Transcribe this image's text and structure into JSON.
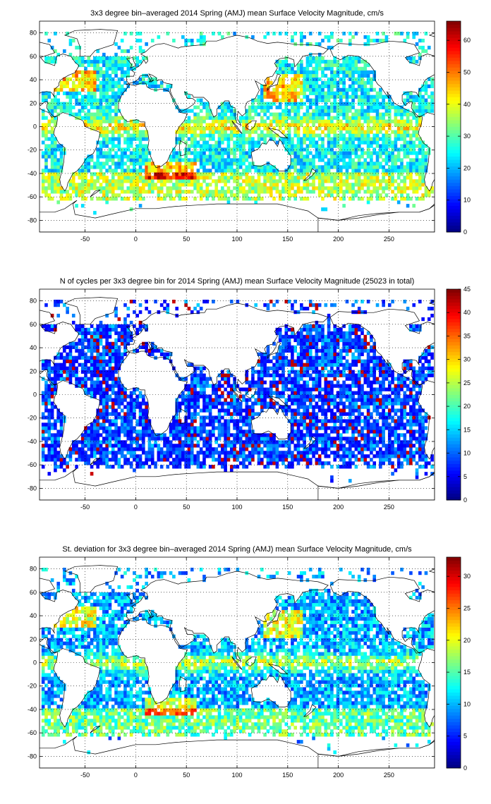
{
  "chart_data": [
    {
      "type": "heatmap",
      "title": "3x3 degree bin–averaged 2014 Spring (AMJ) mean Surface Velocity Magnitude, cm/s",
      "xlim": [
        -95,
        295
      ],
      "ylim": [
        -90,
        90
      ],
      "xticks": [
        -50,
        0,
        50,
        100,
        150,
        200,
        250
      ],
      "yticks": [
        80,
        60,
        40,
        20,
        0,
        -20,
        -40,
        -60,
        -80
      ],
      "grid": true,
      "bin_size_deg": 3,
      "colormap": "jet",
      "colorbar": {
        "min": 0,
        "max": 66,
        "ticks": [
          0,
          10,
          20,
          30,
          40,
          50,
          60
        ]
      },
      "map": "world coastlines"
    },
    {
      "type": "heatmap",
      "title": "N of cycles per 3x3 degree bin for 2014 Spring (AMJ) mean Surface Velocity Magnitude (25023 in total)",
      "total_cycles": 25023,
      "xlim": [
        -95,
        295
      ],
      "ylim": [
        -90,
        90
      ],
      "xticks": [
        -50,
        0,
        50,
        100,
        150,
        200,
        250
      ],
      "yticks": [
        80,
        60,
        40,
        20,
        0,
        -20,
        -40,
        -60,
        -80
      ],
      "grid": true,
      "bin_size_deg": 3,
      "colormap": "jet",
      "colorbar": {
        "min": 0,
        "max": 45,
        "ticks": [
          0,
          5,
          10,
          15,
          20,
          25,
          30,
          35,
          40,
          45
        ]
      },
      "map": "world coastlines"
    },
    {
      "type": "heatmap",
      "title": "St. deviation for 3x3 degree bin–averaged 2014 Spring (AMJ) mean Surface Velocity Magnitude, cm/s",
      "xlim": [
        -95,
        295
      ],
      "ylim": [
        -90,
        90
      ],
      "xticks": [
        -50,
        0,
        50,
        100,
        150,
        200,
        250
      ],
      "yticks": [
        80,
        60,
        40,
        20,
        0,
        -20,
        -40,
        -60,
        -80
      ],
      "grid": true,
      "bin_size_deg": 3,
      "colormap": "jet",
      "colorbar": {
        "min": 0,
        "max": 33,
        "ticks": [
          0,
          5,
          10,
          15,
          20,
          25,
          30
        ]
      },
      "map": "world coastlines"
    }
  ]
}
